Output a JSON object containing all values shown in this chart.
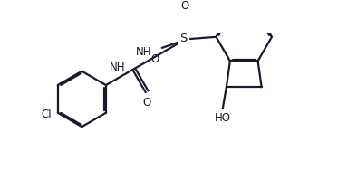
{
  "background": "#ffffff",
  "line_color": "#1a1a2e",
  "line_width": 1.6,
  "font_size": 8.5,
  "fig_width": 3.94,
  "fig_height": 1.99,
  "dpi": 100,
  "xlim": [
    0,
    3.94
  ],
  "ylim": [
    0,
    1.99
  ]
}
